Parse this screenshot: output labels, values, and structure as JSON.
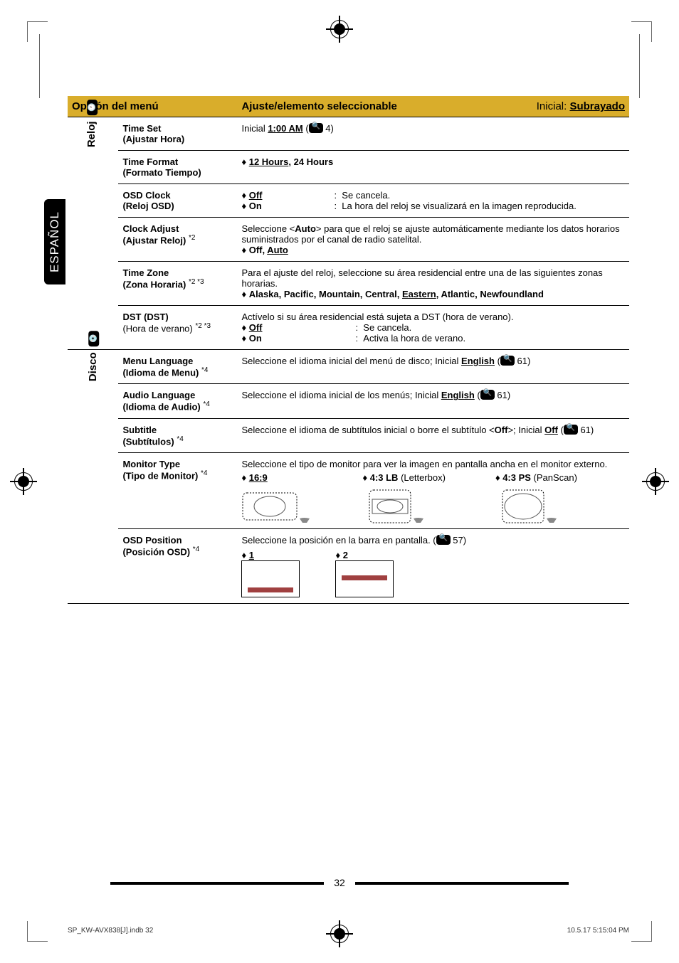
{
  "sidetab": "ESPAÑOL",
  "header": {
    "col1": "Opción del menú",
    "col2": "Ajuste/elemento seleccionable",
    "right_label": "Inicial:",
    "right_value": "Subrayado"
  },
  "sections": [
    {
      "vlabel": "Reloj",
      "vicon": "clock",
      "rows": [
        {
          "opt_main": "Time Set",
          "opt_sub": "(Ajustar Hora)",
          "content_html": "Inicial <span class='b u'>1:00 AM</span> (<span class='qicon'></span> 4)"
        },
        {
          "opt_main": "Time Format",
          "opt_sub": "(Formato Tiempo)",
          "content_html": "<span class='bullet'></span><span class='b u'>12 Hours</span><span class='b'>, 24 Hours</span>"
        },
        {
          "opt_main": "OSD Clock",
          "opt_sub": "(Reloj OSD)",
          "content_html": "<div style='display:flex'><div style='width:130px'><span class='bullet'></span><span class='b u'>Off</span></div><div>:&nbsp;&nbsp;Se cancela.</div></div><div style='display:flex'><div style='width:130px'><span class='bullet'></span><span class='b'>On</span></div><div>:&nbsp;&nbsp;La hora del reloj se visualizará en la imagen reproducida.</div></div>"
        },
        {
          "opt_main": "Clock Adjust",
          "opt_sub": "(Ajustar Reloj)",
          "opt_sup": "*2",
          "content_html": "Seleccione &lt;<span class='b'>Auto</span>&gt; para que el reloj se ajuste automáticamente mediante los datos horarios suministrados por el canal de radio satelital.<br><span class='bullet'></span><span class='b'>Off, <span class='u'>Auto</span></span>"
        },
        {
          "opt_main": "Time Zone",
          "opt_sub": "(Zona Horaria)",
          "opt_sup": "*2 *3",
          "content_html": "Para el ajuste del reloj, seleccione su área residencial entre una de las siguientes zonas horarias.<br><span class='bullet'></span><span class='b'>Alaska, Pacific, Mountain, Central, <span class='u'>Eastern</span>, Atlantic, Newfoundland</span>"
        },
        {
          "opt_main": "DST (DST)",
          "opt_sub_light": "(Hora de verano)",
          "opt_sup": "*2 *3",
          "content_html": "Actívelo si su área residencial está sujeta a DST (hora de verano).<div style='display:flex'><div style='width:160px'><span class='bullet'></span><span class='b u'>Off</span></div><div>:&nbsp;&nbsp;Se cancela.</div></div><div style='display:flex'><div style='width:160px'><span class='bullet'></span><span class='b'>On</span></div><div>:&nbsp;&nbsp;Activa la hora de verano.</div></div>"
        }
      ]
    },
    {
      "vlabel": "Disco",
      "vicon": "disc",
      "rows": [
        {
          "opt_main": "Menu Language",
          "opt_sub": "(Idioma de Menu)",
          "opt_sup": "*4",
          "content_html": "Seleccione el idioma inicial del menú de disco; Inicial <span class='b u'>English</span> (<span class='qicon'></span> 61)"
        },
        {
          "opt_main": "Audio Language",
          "opt_sub": "(Idioma de Audio)",
          "opt_sup": "*4",
          "content_html": "Seleccione el idioma inicial de los menús; Inicial <span class='b u'>English</span> (<span class='qicon'></span> 61)"
        },
        {
          "opt_main": "Subtitle",
          "opt_sub": "(Subtítulos)",
          "opt_sup": "*4",
          "content_html": "Seleccione el idioma de subtítulos inicial o borre el subtítulo &lt;<span class='b'>Off</span>&gt;; Inicial <span class='b u'>Off</span> (<span class='qicon'></span> 61)"
        },
        {
          "opt_main": "Monitor Type",
          "opt_sub": "(Tipo de Monitor)",
          "opt_sup": "*4",
          "monitor": true,
          "content_text": "Seleccione el tipo de monitor para ver la imagen en pantalla ancha en el monitor externo.",
          "monitor_opts": [
            {
              "label_html": "<span class='bullet'></span><span class='b u'>16:9</span>",
              "shape": "wide"
            },
            {
              "label_html": "<span class='bullet'></span><span class='b'>4:3 LB</span> (Letterbox)",
              "shape": "lb"
            },
            {
              "label_html": "<span class='bullet'></span><span class='b'>4:3 PS</span> (PanScan)",
              "shape": "ps"
            }
          ]
        },
        {
          "opt_main": "OSD Position",
          "opt_sub": "(Posición OSD)",
          "opt_sup": "*4",
          "osd": true,
          "content_html": "Seleccione la posición en la barra en pantalla. (<span class='qicon'></span> 57)",
          "osd_opts": [
            {
              "label_html": "<span class='bullet'></span><span class='b u'>1</span>",
              "pos": "bottom"
            },
            {
              "label_html": "<span class='bullet'></span><span class='b'>2</span>",
              "pos": "middle"
            }
          ]
        }
      ]
    }
  ],
  "page_number": "32",
  "footer_left": "SP_KW-AVX838[J].indb   32",
  "footer_right": "10.5.17   5:15:04 PM",
  "colors": {
    "header_bg": "#d9ad2b",
    "osd_bar": "#a04040"
  }
}
